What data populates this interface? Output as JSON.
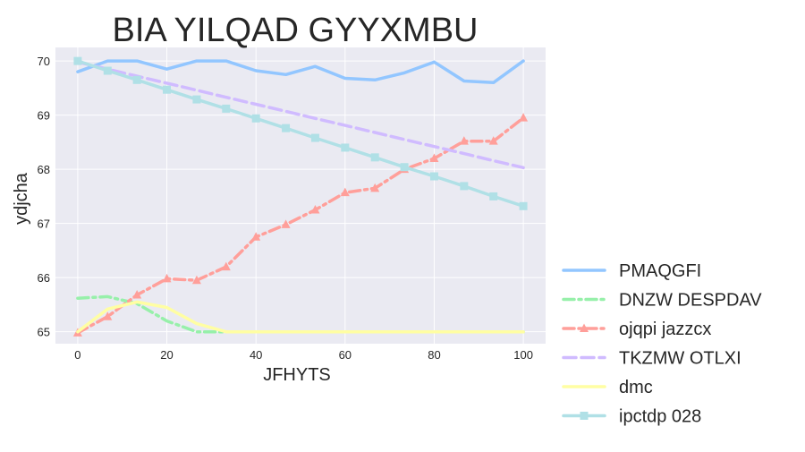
{
  "chart_data": {
    "type": "line",
    "title": "BIA YILQAD GYYXMBU",
    "xlabel": "JFHYTS",
    "ylabel": "ydjcha",
    "xlim": [
      -5,
      105
    ],
    "ylim": [
      64.78,
      70.25
    ],
    "xticks": [
      0,
      20,
      40,
      60,
      80,
      100
    ],
    "yticks": [
      65,
      66,
      67,
      68,
      69,
      70
    ],
    "grid": true,
    "legend_position": "lower-right, outside plot",
    "x": [
      0,
      6.7,
      13.3,
      20,
      26.7,
      33.3,
      40,
      46.7,
      53.3,
      60,
      66.7,
      73.3,
      80,
      86.7,
      93.3,
      100
    ],
    "series": [
      {
        "name": "PMAQGFI",
        "color": "#92c6ff",
        "style": "solid",
        "marker": "none",
        "values": [
          69.8,
          70.0,
          70.0,
          69.85,
          70.0,
          70.0,
          69.82,
          69.75,
          69.9,
          69.68,
          69.65,
          69.78,
          69.98,
          69.63,
          69.6,
          70.0
        ]
      },
      {
        "name": "DNZW DESPDAV",
        "color": "#97f0aa",
        "style": "dashdot",
        "marker": "none",
        "values": [
          65.62,
          65.65,
          65.52,
          65.2,
          65.0,
          65.0,
          65.0,
          65.0,
          65.0,
          65.0,
          65.0,
          65.0,
          65.0,
          65.0,
          65.0,
          65.0
        ]
      },
      {
        "name": "ojqpi jazzcx",
        "color": "#ff9f9a",
        "style": "dashdot",
        "marker": "triangle",
        "values": [
          64.98,
          65.28,
          65.68,
          65.98,
          65.95,
          66.2,
          66.75,
          66.98,
          67.25,
          67.57,
          67.65,
          68.0,
          68.2,
          68.52,
          68.52,
          68.95
        ]
      },
      {
        "name": "TKZMW OTLXI",
        "color": "#d0bbff",
        "style": "dashed",
        "marker": "none",
        "values": [
          69.98,
          69.85,
          69.72,
          69.59,
          69.46,
          69.33,
          69.2,
          69.07,
          68.94,
          68.81,
          68.68,
          68.55,
          68.42,
          68.29,
          68.16,
          68.03
        ]
      },
      {
        "name": "dmc",
        "color": "#fffea3",
        "style": "solid",
        "marker": "none",
        "values": [
          65.0,
          65.42,
          65.55,
          65.45,
          65.15,
          65.0,
          65.0,
          65.0,
          65.0,
          65.0,
          65.0,
          65.0,
          65.0,
          65.0,
          65.0,
          65.0
        ]
      },
      {
        "name": "ipctdp 028",
        "color": "#b0e0e6",
        "style": "solid",
        "marker": "square",
        "values": [
          70.0,
          69.82,
          69.65,
          69.47,
          69.29,
          69.12,
          68.94,
          68.76,
          68.58,
          68.4,
          68.22,
          68.04,
          67.87,
          67.69,
          67.5,
          67.32
        ]
      }
    ]
  }
}
